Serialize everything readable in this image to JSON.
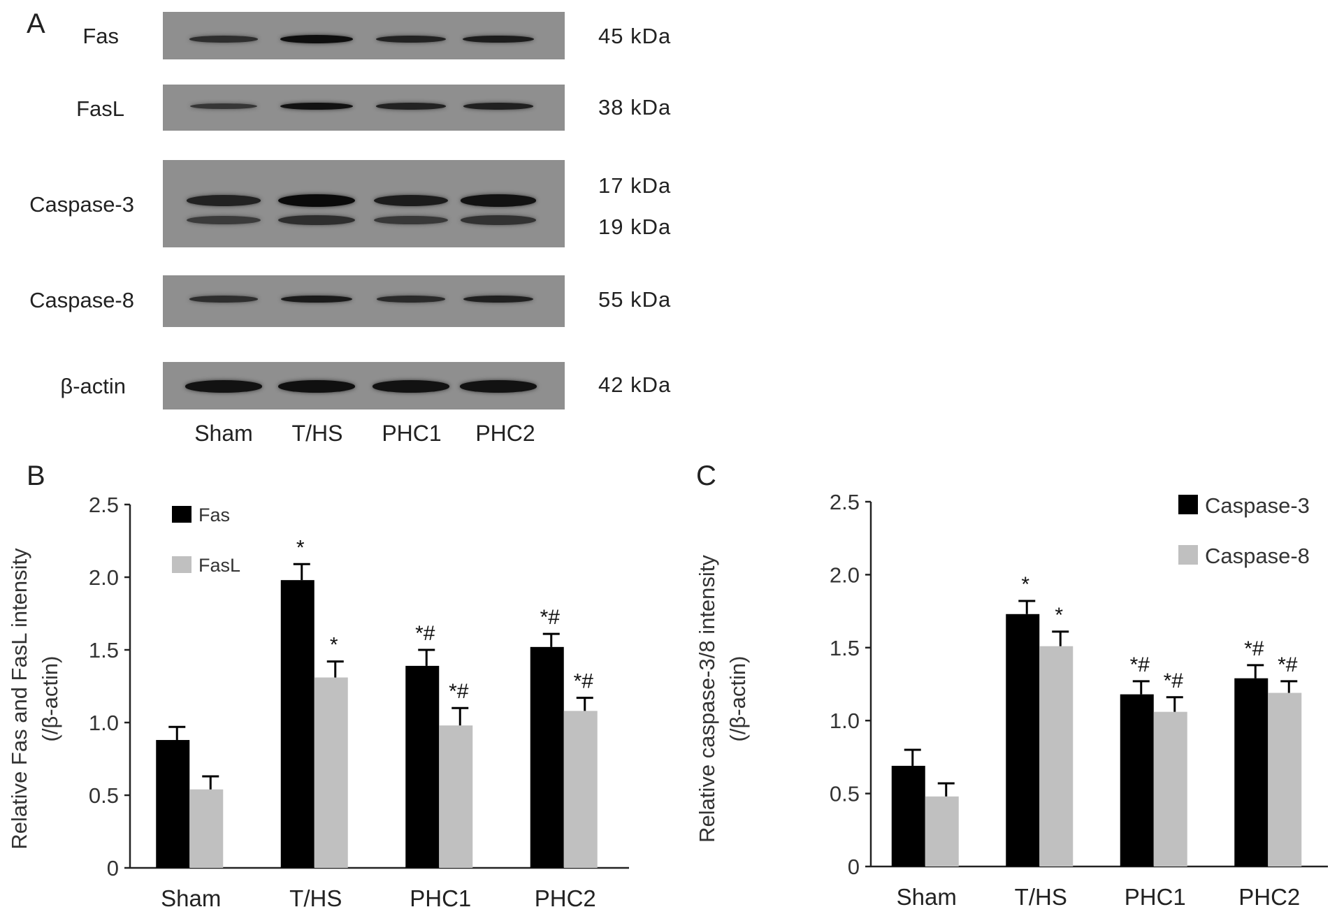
{
  "panel_a": {
    "letter": "A",
    "proteins": [
      {
        "name": "Fas",
        "kda": "45 kDa",
        "kda2": "",
        "intensity": [
          0.55,
          0.95,
          0.7,
          0.78
        ]
      },
      {
        "name": "FasL",
        "kda": "38 kDa",
        "kda2": "",
        "intensity": [
          0.45,
          0.9,
          0.7,
          0.72
        ]
      },
      {
        "name": "Caspase-3",
        "kda": "17 kDa",
        "kda2": "19 kDa",
        "intensity": [
          0.7,
          1.0,
          0.78,
          0.9
        ]
      },
      {
        "name": "Caspase-8",
        "kda": "55 kDa",
        "kda2": "",
        "intensity": [
          0.55,
          0.8,
          0.6,
          0.72
        ]
      },
      {
        "name": "β-actin",
        "kda": "42 kDa",
        "kda2": "",
        "intensity": [
          0.9,
          0.92,
          0.9,
          0.9
        ]
      }
    ],
    "lanes": [
      "Sham",
      "T/HS",
      "PHC1",
      "PHC2"
    ]
  },
  "chart_data": [
    {
      "panel": "B",
      "type": "bar",
      "categories": [
        "Sham",
        "T/HS",
        "PHC1",
        "PHC2"
      ],
      "series": [
        {
          "name": "Fas",
          "color": "#000000",
          "values": [
            0.88,
            1.98,
            1.39,
            1.52
          ],
          "errors": [
            0.09,
            0.11,
            0.11,
            0.09
          ],
          "annotations": [
            "",
            "*",
            "*#",
            "*#"
          ]
        },
        {
          "name": "FasL",
          "color": "#c0c0c0",
          "values": [
            0.54,
            1.31,
            0.98,
            1.08
          ],
          "errors": [
            0.09,
            0.11,
            0.12,
            0.09
          ],
          "annotations": [
            "",
            "*",
            "*#",
            "*#"
          ]
        }
      ],
      "ylabel_line1": "Relative Fas and FasL intensity",
      "ylabel_line2": "(/β-actin)",
      "xlabel": "",
      "ylim": [
        0,
        2.5
      ],
      "yticks": [
        0,
        0.5,
        1.0,
        1.5,
        2.0,
        2.5
      ],
      "ytick_labels": [
        "0",
        "0.5",
        "1.0",
        "1.5",
        "2.0",
        "2.5"
      ],
      "legend_position": "top-left",
      "grid": false
    },
    {
      "panel": "C",
      "type": "bar",
      "categories": [
        "Sham",
        "T/HS",
        "PHC1",
        "PHC2"
      ],
      "series": [
        {
          "name": "Caspase-3",
          "color": "#000000",
          "values": [
            0.69,
            1.73,
            1.18,
            1.29
          ],
          "errors": [
            0.11,
            0.09,
            0.09,
            0.09
          ],
          "annotations": [
            "",
            "*",
            "*#",
            "*#"
          ]
        },
        {
          "name": "Caspase-8",
          "color": "#c0c0c0",
          "values": [
            0.48,
            1.51,
            1.06,
            1.19
          ],
          "errors": [
            0.09,
            0.1,
            0.1,
            0.08
          ],
          "annotations": [
            "",
            "*",
            "*#",
            "*#"
          ]
        }
      ],
      "ylabel_line1": "Relative caspase-3/8 intensity",
      "ylabel_line2": "(/β-actin)",
      "xlabel": "",
      "ylim": [
        0,
        2.5
      ],
      "yticks": [
        0,
        0.5,
        1.0,
        1.5,
        2.0,
        2.5
      ],
      "ytick_labels": [
        "0",
        "0.5",
        "1.0",
        "1.5",
        "2.0",
        "2.5"
      ],
      "legend_position": "top-right",
      "grid": false
    }
  ]
}
